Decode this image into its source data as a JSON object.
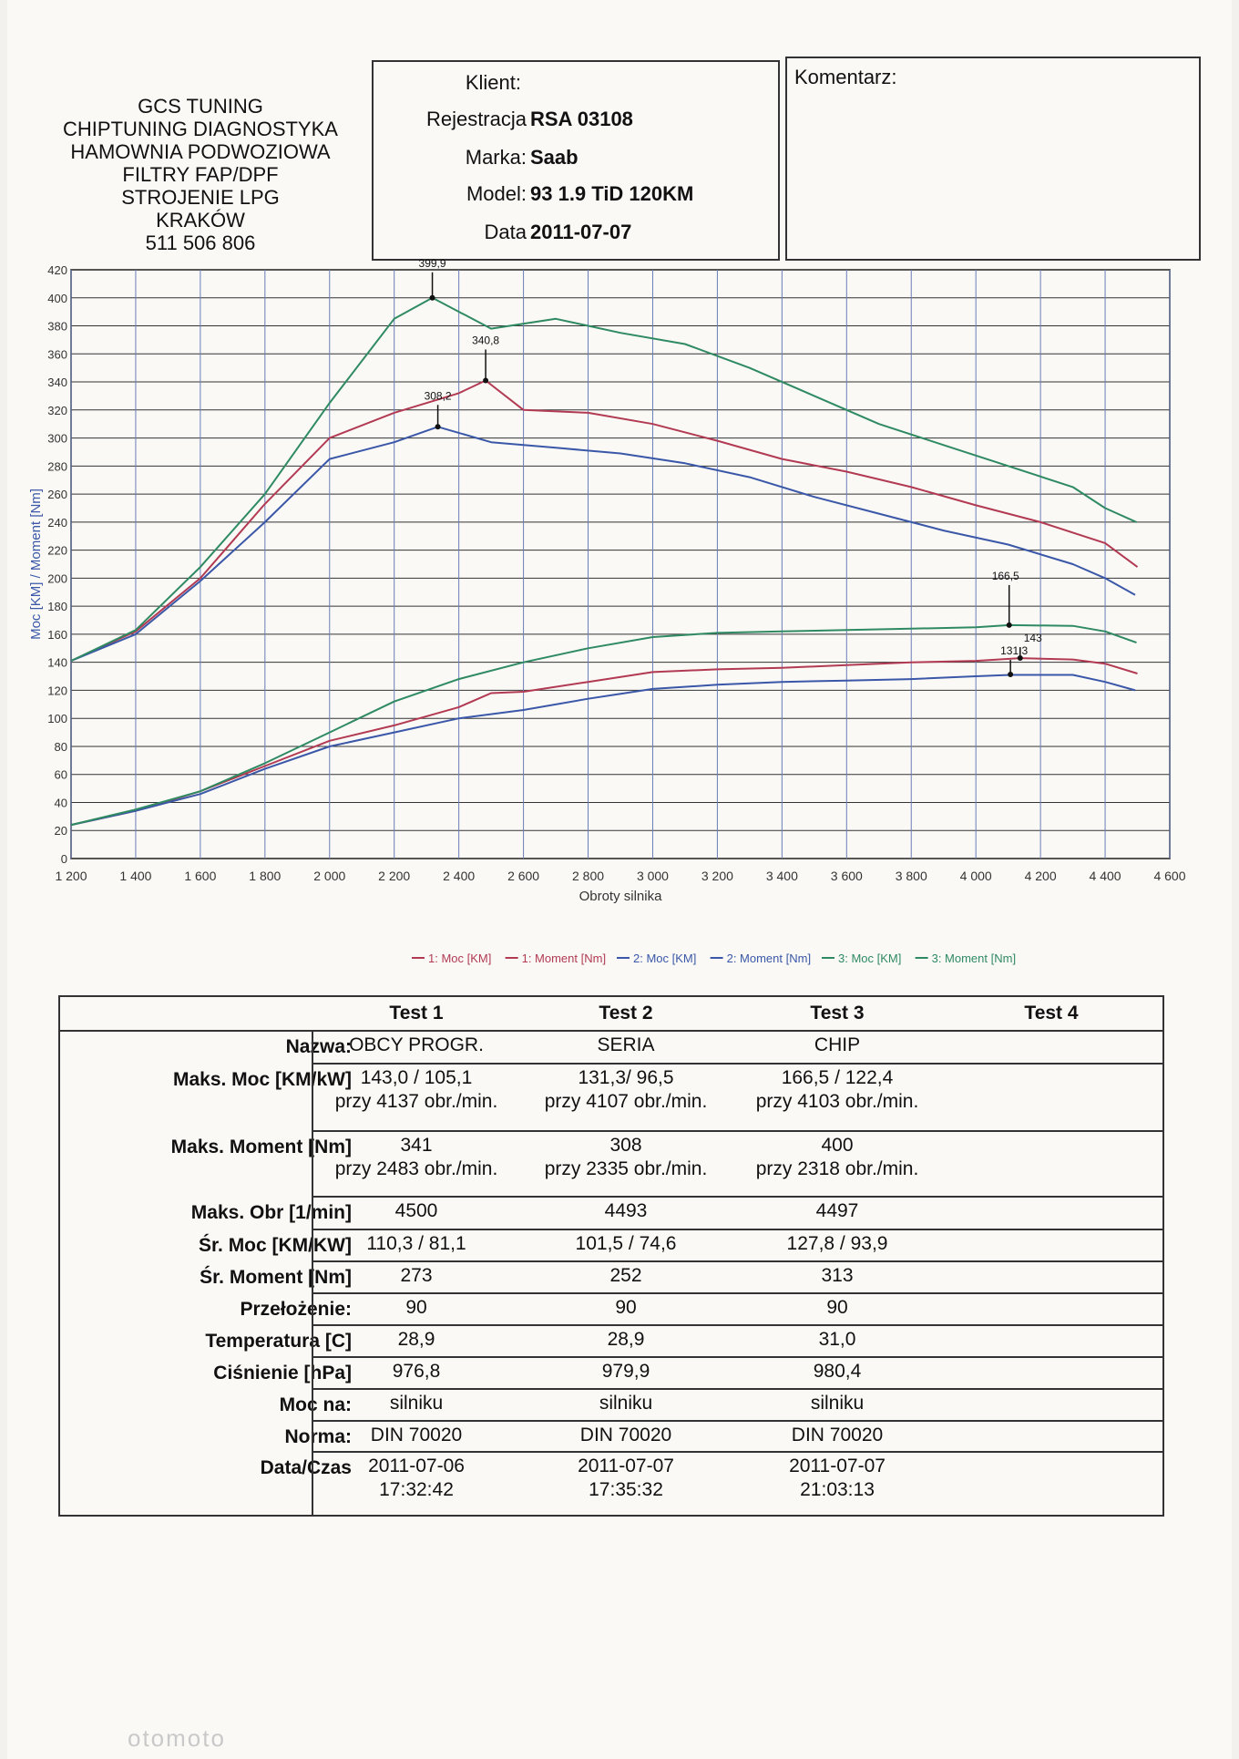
{
  "company": {
    "lines": [
      "GCS TUNING",
      "CHIPTUNING DIAGNOSTYKA",
      "HAMOWNIA PODWOZIOWA",
      "FILTRY FAP/DPF",
      "STROJENIE LPG",
      "KRAKÓW",
      "511 506 806"
    ]
  },
  "vehicle": {
    "client_label": "Klient:",
    "client_value": "",
    "reg_label": "Rejestracja",
    "reg_value": "RSA 03108",
    "make_label": "Marka:",
    "make_value": "Saab",
    "model_label": "Model:",
    "model_value": "93 1.9 TiD 120KM",
    "date_label": "Data",
    "date_value": "2011-07-07"
  },
  "comment": {
    "label": "Komentarz:"
  },
  "chart_data": {
    "type": "line",
    "xlabel": "Obroty silnika",
    "ylabel": "Moc [KM] / Moment [Nm]",
    "xlim": [
      1200,
      4600
    ],
    "ylim": [
      0,
      420
    ],
    "x_ticks": [
      "1 200",
      "1 400",
      "1 600",
      "1 800",
      "2 000",
      "2 200",
      "2 400",
      "2 600",
      "2 800",
      "3 000",
      "3 200",
      "3 400",
      "3 600",
      "3 800",
      "4 000",
      "4 200",
      "4 400",
      "4 600"
    ],
    "y_ticks": [
      0,
      20,
      40,
      60,
      80,
      100,
      120,
      140,
      160,
      180,
      200,
      220,
      240,
      260,
      280,
      300,
      320,
      340,
      360,
      380,
      400,
      420
    ],
    "grid": true,
    "legend_position": "bottom",
    "series": [
      {
        "name": "1: Moc [KM]",
        "color": "#b23a52",
        "points": [
          [
            1200,
            24
          ],
          [
            1400,
            34
          ],
          [
            1600,
            48
          ],
          [
            1800,
            66
          ],
          [
            2000,
            84
          ],
          [
            2200,
            95
          ],
          [
            2400,
            108
          ],
          [
            2500,
            118
          ],
          [
            2600,
            119
          ],
          [
            2800,
            126
          ],
          [
            3000,
            133
          ],
          [
            3200,
            135
          ],
          [
            3400,
            136
          ],
          [
            3600,
            138
          ],
          [
            3800,
            140
          ],
          [
            4000,
            141
          ],
          [
            4137,
            143
          ],
          [
            4300,
            142
          ],
          [
            4400,
            139
          ],
          [
            4500,
            132
          ]
        ]
      },
      {
        "name": "1: Moment [Nm]",
        "color": "#b23a52",
        "points": [
          [
            1200,
            141
          ],
          [
            1400,
            162
          ],
          [
            1600,
            200
          ],
          [
            1800,
            253
          ],
          [
            2000,
            300
          ],
          [
            2200,
            318
          ],
          [
            2400,
            332
          ],
          [
            2483,
            341
          ],
          [
            2600,
            320
          ],
          [
            2800,
            318
          ],
          [
            3000,
            310
          ],
          [
            3200,
            298
          ],
          [
            3400,
            285
          ],
          [
            3600,
            276
          ],
          [
            3800,
            265
          ],
          [
            4000,
            252
          ],
          [
            4200,
            240
          ],
          [
            4400,
            225
          ],
          [
            4500,
            208
          ]
        ]
      },
      {
        "name": "2: Moc [KM]",
        "color": "#3a57a8",
        "points": [
          [
            1200,
            24
          ],
          [
            1400,
            34
          ],
          [
            1600,
            46
          ],
          [
            1800,
            64
          ],
          [
            2000,
            80
          ],
          [
            2200,
            90
          ],
          [
            2400,
            100
          ],
          [
            2600,
            106
          ],
          [
            2800,
            114
          ],
          [
            3000,
            121
          ],
          [
            3200,
            124
          ],
          [
            3400,
            126
          ],
          [
            3600,
            127
          ],
          [
            3800,
            128
          ],
          [
            4000,
            130
          ],
          [
            4107,
            131
          ],
          [
            4300,
            131
          ],
          [
            4400,
            126
          ],
          [
            4493,
            120
          ]
        ]
      },
      {
        "name": "2: Moment [Nm]",
        "color": "#3a57a8",
        "points": [
          [
            1200,
            141
          ],
          [
            1400,
            160
          ],
          [
            1600,
            198
          ],
          [
            1800,
            240
          ],
          [
            2000,
            285
          ],
          [
            2200,
            297
          ],
          [
            2335,
            308
          ],
          [
            2500,
            297
          ],
          [
            2700,
            293
          ],
          [
            2900,
            289
          ],
          [
            3100,
            282
          ],
          [
            3300,
            272
          ],
          [
            3500,
            258
          ],
          [
            3700,
            246
          ],
          [
            3900,
            234
          ],
          [
            4100,
            224
          ],
          [
            4300,
            210
          ],
          [
            4400,
            200
          ],
          [
            4493,
            188
          ]
        ]
      },
      {
        "name": "3: Moc [KM]",
        "color": "#2f8a62",
        "points": [
          [
            1200,
            24
          ],
          [
            1400,
            35
          ],
          [
            1600,
            48
          ],
          [
            1800,
            68
          ],
          [
            2000,
            90
          ],
          [
            2200,
            112
          ],
          [
            2400,
            128
          ],
          [
            2600,
            140
          ],
          [
            2800,
            150
          ],
          [
            3000,
            158
          ],
          [
            3200,
            161
          ],
          [
            3400,
            162
          ],
          [
            3600,
            163
          ],
          [
            3800,
            164
          ],
          [
            4000,
            165
          ],
          [
            4103,
            166.5
          ],
          [
            4300,
            166
          ],
          [
            4400,
            162
          ],
          [
            4497,
            154
          ]
        ]
      },
      {
        "name": "3: Moment [Nm]",
        "color": "#2f8a62",
        "points": [
          [
            1200,
            141
          ],
          [
            1400,
            163
          ],
          [
            1600,
            208
          ],
          [
            1800,
            260
          ],
          [
            2000,
            325
          ],
          [
            2200,
            385
          ],
          [
            2318,
            400
          ],
          [
            2500,
            378
          ],
          [
            2700,
            385
          ],
          [
            2900,
            375
          ],
          [
            3100,
            367
          ],
          [
            3300,
            350
          ],
          [
            3500,
            330
          ],
          [
            3700,
            310
          ],
          [
            3900,
            295
          ],
          [
            4100,
            280
          ],
          [
            4300,
            265
          ],
          [
            4400,
            250
          ],
          [
            4497,
            240
          ]
        ]
      }
    ],
    "annotations": [
      {
        "text": "399,9",
        "x": 2318,
        "y": 400
      },
      {
        "text": "340,8",
        "x": 2483,
        "y": 341
      },
      {
        "text": "308,2",
        "x": 2335,
        "y": 308
      },
      {
        "text": "166,5",
        "x": 4103,
        "y": 166.5
      },
      {
        "text": "143",
        "x": 4137,
        "y": 143
      },
      {
        "text": "131,3",
        "x": 4107,
        "y": 131.3
      }
    ]
  },
  "results": {
    "headers": [
      "Test 1",
      "Test 2",
      "Test 3",
      "Test 4"
    ],
    "rows": [
      {
        "label": "Nazwa:",
        "values": [
          "OBCY PROGR.",
          "SERIA",
          "CHIP",
          ""
        ]
      },
      {
        "label": "Maks. Moc [KM/kW]",
        "values": [
          "143,0 / 105,1",
          "131,3/ 96,5",
          "166,5 / 122,4",
          ""
        ],
        "sub": [
          "przy 4137 obr./min.",
          "przy 4107 obr./min.",
          "przy 4103 obr./min.",
          ""
        ]
      },
      {
        "label": "Maks. Moment [Nm]",
        "values": [
          "341",
          "308",
          "400",
          ""
        ],
        "sub": [
          "przy 2483 obr./min.",
          "przy 2335 obr./min.",
          "przy 2318 obr./min.",
          ""
        ]
      },
      {
        "label": "Maks. Obr [1/min]",
        "values": [
          "4500",
          "4493",
          "4497",
          ""
        ]
      },
      {
        "label": "Śr. Moc [KM/KW]",
        "values": [
          "110,3 / 81,1",
          "101,5 / 74,6",
          "127,8 / 93,9",
          ""
        ]
      },
      {
        "label": "Śr. Moment [Nm]",
        "values": [
          "273",
          "252",
          "313",
          ""
        ]
      },
      {
        "label": "Przełożenie:",
        "values": [
          "90",
          "90",
          "90",
          ""
        ]
      },
      {
        "label": "Temperatura [C]",
        "values": [
          "28,9",
          "28,9",
          "31,0",
          ""
        ]
      },
      {
        "label": "Ciśnienie [hPa]",
        "values": [
          "976,8",
          "979,9",
          "980,4",
          ""
        ]
      },
      {
        "label": "Moc na:",
        "values": [
          "silniku",
          "silniku",
          "silniku",
          ""
        ]
      },
      {
        "label": "Norma:",
        "values": [
          "DIN 70020",
          "DIN 70020",
          "DIN 70020",
          ""
        ]
      },
      {
        "label": "Data/Czas",
        "values": [
          "2011-07-06",
          "2011-07-07",
          "2011-07-07",
          ""
        ],
        "sub": [
          "17:32:42",
          "17:35:32",
          "21:03:13",
          ""
        ]
      }
    ]
  },
  "footer": {
    "watermark": "otomoto"
  }
}
